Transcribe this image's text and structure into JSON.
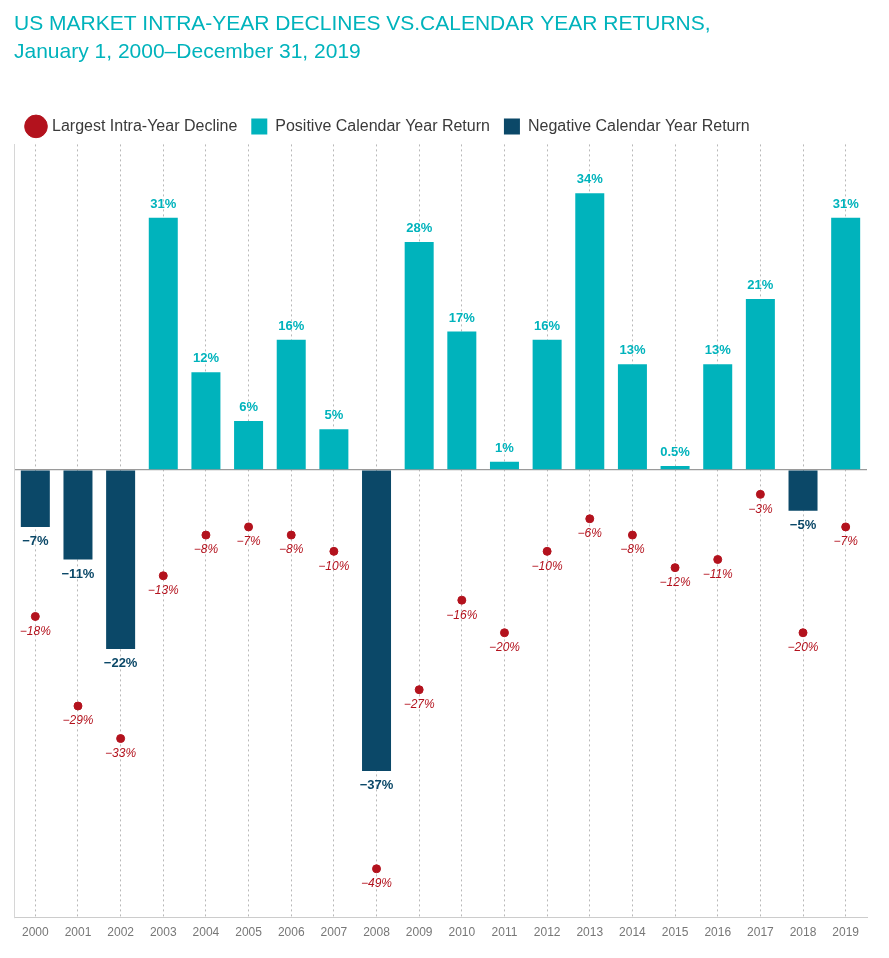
{
  "chart_data": {
    "type": "bar",
    "title": "US MARKET INTRA-YEAR DECLINES VS.CALENDAR YEAR RETURNS,",
    "subtitle": "January 1, 2000–December 31, 2019",
    "categories": [
      "2000",
      "2001",
      "2002",
      "2003",
      "2004",
      "2005",
      "2006",
      "2007",
      "2008",
      "2009",
      "2010",
      "2011",
      "2012",
      "2013",
      "2014",
      "2015",
      "2016",
      "2017",
      "2018",
      "2019"
    ],
    "series": [
      {
        "name": "Positive Calendar Year Return",
        "type": "bar",
        "color": "#00b3bc",
        "values": [
          null,
          null,
          null,
          31,
          12,
          6,
          16,
          5,
          null,
          28,
          17,
          1,
          16,
          34,
          13,
          0.5,
          13,
          21,
          null,
          31
        ],
        "value_labels": [
          null,
          null,
          null,
          "31%",
          "12%",
          "6%",
          "16%",
          "5%",
          null,
          "28%",
          "17%",
          "1%",
          "16%",
          "34%",
          "13%",
          "0.5%",
          "13%",
          "21%",
          null,
          "31%"
        ]
      },
      {
        "name": "Negative Calendar Year Return",
        "type": "bar",
        "color": "#0b4868",
        "values": [
          -7,
          -11,
          -22,
          null,
          null,
          null,
          null,
          null,
          -37,
          null,
          null,
          null,
          null,
          null,
          null,
          null,
          null,
          null,
          -5,
          null
        ],
        "value_labels": [
          "−7%",
          "−11%",
          "−22%",
          null,
          null,
          null,
          null,
          null,
          "−37%",
          null,
          null,
          null,
          null,
          null,
          null,
          null,
          null,
          null,
          "−5%",
          null
        ]
      },
      {
        "name": "Largest Intra-Year Decline",
        "type": "scatter",
        "color": "#b3121d",
        "marker": "circle",
        "values": [
          -18,
          -29,
          -33,
          -13,
          -8,
          -7,
          -8,
          -10,
          -49,
          -27,
          -16,
          -20,
          -10,
          -6,
          -8,
          -12,
          -11,
          -3,
          -20,
          -7
        ],
        "value_labels": [
          "−18%",
          "−29%",
          "−33%",
          "−13%",
          "−8%",
          "−7%",
          "−8%",
          "−10%",
          "−49%",
          "−27%",
          "−16%",
          "−20%",
          "−10%",
          "−6%",
          "−8%",
          "−12%",
          "−11%",
          "−3%",
          "−20%",
          "−7%"
        ]
      }
    ],
    "ylim": [
      -55,
      40
    ],
    "yticks": [
      0
    ],
    "grid": true,
    "legend": "top",
    "data_labels": true,
    "tick_labels": "x"
  }
}
